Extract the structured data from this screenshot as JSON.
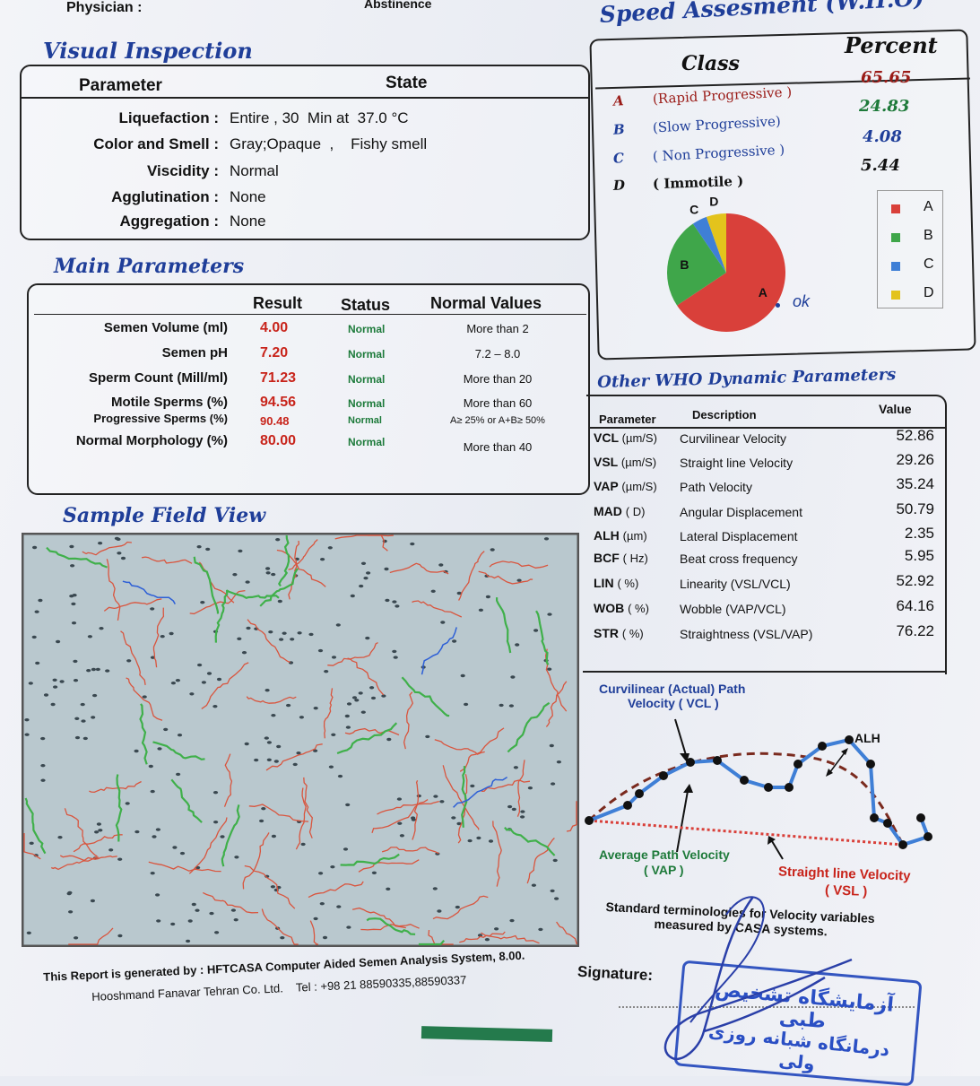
{
  "header": {
    "physician_label": "Physician :",
    "abstinence_label": "Abstinence"
  },
  "visual_inspection": {
    "title": "Visual Inspection",
    "col_parameter": "Parameter",
    "col_state": "State",
    "rows": [
      {
        "label": "Liquefaction :",
        "value": "Entire , 30  Min at  37.0 °C"
      },
      {
        "label": "Color and Smell :",
        "value": "Gray;Opaque  ,    Fishy smell"
      },
      {
        "label": "Viscidity :",
        "value": "Normal"
      },
      {
        "label": "Agglutination :",
        "value": "None"
      },
      {
        "label": "Aggregation :",
        "value": "None"
      }
    ]
  },
  "main_parameters": {
    "title": "Main Parameters",
    "headers": {
      "result": "Result",
      "status": "Status",
      "normal": "Normal Values"
    },
    "rows": [
      {
        "name": "Semen Volume (ml)",
        "result": "4.00",
        "status": "Normal",
        "normal": "More than  2"
      },
      {
        "name": "Semen pH",
        "result": "7.20",
        "status": "Normal",
        "normal": "7.2 – 8.0"
      },
      {
        "name": "Sperm Count (Mill/ml)",
        "result": "71.23",
        "status": "Normal",
        "normal": "More than  20"
      },
      {
        "name": "Motile Sperms (%)",
        "result": "94.56",
        "status": "Normal",
        "normal": "More than 60"
      },
      {
        "name": "Progressive Sperms (%)",
        "result": "90.48",
        "status": "Normal",
        "normal": "A≥ 25% or A+B≥ 50%"
      },
      {
        "name": "Normal Morphology (%)",
        "result": "80.00",
        "status": "Normal",
        "normal": "More than  40"
      }
    ]
  },
  "speed": {
    "title": "Speed Assesment (W.H.O)",
    "col_class": "Class",
    "col_percent": "Percent",
    "classes": [
      {
        "key": "A",
        "desc": "(Rapid Progressive )",
        "percent": "65.65",
        "color": "#d9403a"
      },
      {
        "key": "B",
        "desc": "(Slow Progressive)",
        "percent": "24.83",
        "color": "#3fa64a"
      },
      {
        "key": "C",
        "desc": "( Non Progressive )",
        "percent": "4.08",
        "color": "#3f7fd6"
      },
      {
        "key": "D",
        "desc": "( Immotile )",
        "percent": "5.44",
        "color": "#e3c31c"
      }
    ],
    "handwritten_note": "ok"
  },
  "chart_data": {
    "type": "pie",
    "categories": [
      "A",
      "B",
      "C",
      "D"
    ],
    "values": [
      65.65,
      24.83,
      4.08,
      5.44
    ],
    "colors": [
      "#d9403a",
      "#3fa64a",
      "#3f7fd6",
      "#e3c31c"
    ],
    "legend": "right"
  },
  "dynamic": {
    "title": "Other WHO Dynamic Parameters",
    "headers": {
      "parameter": "Parameter",
      "description": "Description",
      "value": "Value"
    },
    "rows": [
      {
        "param": "VCL",
        "unit": "(µm/S)",
        "desc": "Curvilinear Velocity",
        "value": "52.86"
      },
      {
        "param": "VSL",
        "unit": "(µm/S)",
        "desc": "Straight line Velocity",
        "value": "29.26"
      },
      {
        "param": "VAP",
        "unit": "(µm/S)",
        "desc": "Path Velocity",
        "value": "35.24"
      },
      {
        "param": "MAD",
        "unit": "( D)",
        "desc": "Angular Displacement",
        "value": "50.79"
      },
      {
        "param": "ALH",
        "unit": "(µm)",
        "desc": "Lateral Displacement",
        "value": "2.35"
      },
      {
        "param": "BCF",
        "unit": "( Hz)",
        "desc": "Beat cross frequency",
        "value": "5.95"
      },
      {
        "param": "LIN",
        "unit": "( %)",
        "desc": "Linearity (VSL/VCL)",
        "value": "52.92"
      },
      {
        "param": "WOB",
        "unit": "( %)",
        "desc": "Wobble  (VAP/VCL)",
        "value": "64.16"
      },
      {
        "param": "STR",
        "unit": "( %)",
        "desc": "Straightness (VSL/VAP)",
        "value": "76.22"
      }
    ]
  },
  "diagram": {
    "vcl_label_1": "Curvilinear (Actual) Path",
    "vcl_label_2": "Velocity ( VCL )",
    "alh": "ALH",
    "vap_1": "Average Path Velocity",
    "vap_2": "( VAP )",
    "vsl_1": "Straight line Velocity",
    "vsl_2": "( VSL )",
    "caption_1": "Standard terminologies for Velocity variables",
    "caption_2": "measured by CASA systems."
  },
  "sample_field": {
    "title": "Sample Field View"
  },
  "footer": {
    "line1": "This Report is generated by : HFTCASA Computer Aided Semen Analysis System, 8.00.",
    "line2": "Hooshmand Fanavar Tehran Co. Ltd.    Tel : +98 21 88590335,88590337",
    "signature": "Signature:",
    "stamp_line1": "آزمایشگاه تشخیص طبی",
    "stamp_line2": "درمانگاه شبانه روزی ولی"
  }
}
